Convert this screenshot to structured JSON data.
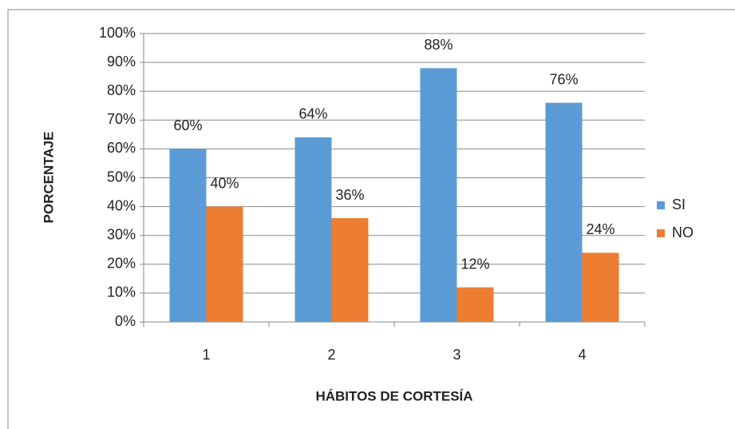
{
  "chart_data": {
    "type": "bar",
    "categories": [
      "1",
      "2",
      "3",
      "4"
    ],
    "series": [
      {
        "name": "SI",
        "color": "#5b9bd5",
        "values": [
          60,
          64,
          88,
          76
        ],
        "value_labels": [
          "60%",
          "64%",
          "88%",
          "76%"
        ]
      },
      {
        "name": "NO",
        "color": "#ed7d31",
        "values": [
          40,
          36,
          12,
          24
        ],
        "value_labels": [
          "40%",
          "36%",
          "12%",
          "24%"
        ]
      }
    ],
    "y_label": "PORCENTAJE",
    "x_label": "HÁBITOS DE CORTESÍA",
    "ylim": [
      0,
      100
    ],
    "yticks": [
      {
        "value": 0,
        "label": "0%"
      },
      {
        "value": 10,
        "label": "10%"
      },
      {
        "value": 20,
        "label": "20%"
      },
      {
        "value": 30,
        "label": "30%"
      },
      {
        "value": 40,
        "label": "40%"
      },
      {
        "value": 50,
        "label": "50%"
      },
      {
        "value": 60,
        "label": "60%"
      },
      {
        "value": 70,
        "label": "70%"
      },
      {
        "value": 80,
        "label": "80%"
      },
      {
        "value": 90,
        "label": "90%"
      },
      {
        "value": 100,
        "label": "100%"
      }
    ],
    "grid": true,
    "legend": "right"
  }
}
